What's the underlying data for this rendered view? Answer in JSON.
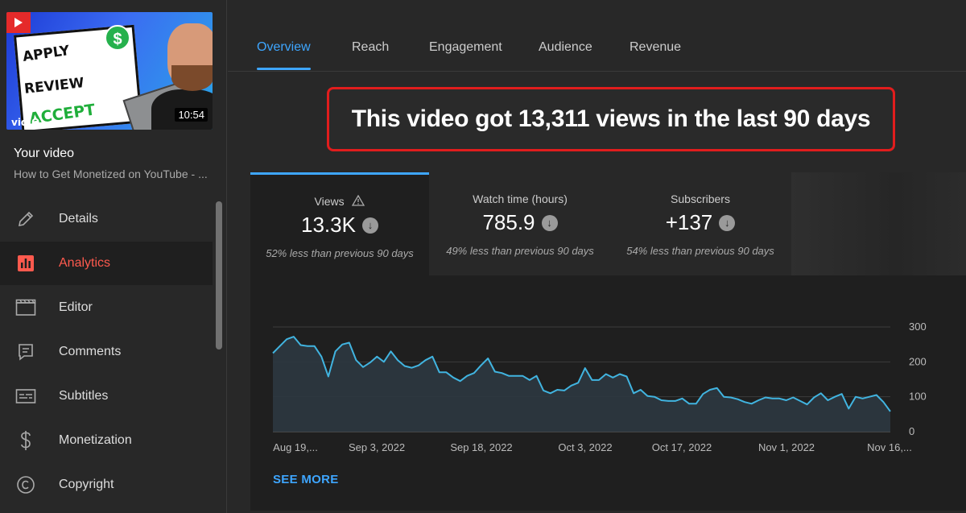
{
  "sidebar": {
    "thumbnail": {
      "words": [
        "APPLY",
        "REVIEW",
        "ACCEPT"
      ],
      "dollar": "$",
      "brand": "vidIQ",
      "duration": "10:54"
    },
    "your_video_label": "Your video",
    "video_title": "How to Get Monetized on YouTube - ...",
    "items": [
      {
        "label": "Details",
        "icon": "pencil-icon",
        "active": false
      },
      {
        "label": "Analytics",
        "icon": "analytics-icon",
        "active": true
      },
      {
        "label": "Editor",
        "icon": "clapperboard-icon",
        "active": false
      },
      {
        "label": "Comments",
        "icon": "comment-icon",
        "active": false
      },
      {
        "label": "Subtitles",
        "icon": "subtitles-icon",
        "active": false
      },
      {
        "label": "Monetization",
        "icon": "dollar-icon",
        "active": false
      },
      {
        "label": "Copyright",
        "icon": "copyright-icon",
        "active": false
      }
    ]
  },
  "tabs": [
    {
      "label": "Overview",
      "active": true
    },
    {
      "label": "Reach",
      "active": false
    },
    {
      "label": "Engagement",
      "active": false
    },
    {
      "label": "Audience",
      "active": false
    },
    {
      "label": "Revenue",
      "active": false
    }
  ],
  "callout": "This video got 13,311 views in the last 90 days",
  "metrics": [
    {
      "label": "Views",
      "value": "13.3K",
      "compare": "52% less than previous 90 days",
      "warning": true
    },
    {
      "label": "Watch time (hours)",
      "value": "785.9",
      "compare": "49% less than previous 90 days",
      "warning": false
    },
    {
      "label": "Subscribers",
      "value": "+137",
      "compare": "54% less than previous 90 days",
      "warning": false
    }
  ],
  "see_more": "SEE MORE",
  "colors": {
    "accent": "#3ea6ff",
    "active_nav": "#ff5a4e",
    "callout_border": "#e11d1d",
    "line": "#41b4e0"
  },
  "chart_data": {
    "type": "area",
    "x_tick_labels": [
      "Aug 19,...",
      "Sep 3, 2022",
      "Sep 18, 2022",
      "Oct 3, 2022",
      "Oct 17, 2022",
      "Nov 1, 2022",
      "Nov 16,..."
    ],
    "y_tick_labels": [
      "0",
      "100",
      "200",
      "300"
    ],
    "ylim": [
      0,
      300
    ],
    "grid": true,
    "series": [
      {
        "values": [
          225,
          245,
          265,
          272,
          248,
          245,
          245,
          215,
          158,
          230,
          250,
          255,
          205,
          185,
          198,
          215,
          200,
          230,
          205,
          188,
          183,
          190,
          205,
          215,
          170,
          170,
          155,
          145,
          160,
          168,
          190,
          210,
          172,
          168,
          160,
          160,
          160,
          148,
          160,
          118,
          110,
          120,
          118,
          132,
          140,
          182,
          148,
          148,
          165,
          155,
          165,
          158,
          110,
          120,
          102,
          100,
          90,
          88,
          88,
          95,
          80,
          80,
          108,
          120,
          125,
          100,
          98,
          93,
          85,
          80,
          90,
          98,
          95,
          95,
          90,
          98,
          88,
          78,
          98,
          110,
          90,
          100,
          108,
          66,
          100,
          95,
          100,
          105,
          85,
          58
        ]
      }
    ]
  }
}
